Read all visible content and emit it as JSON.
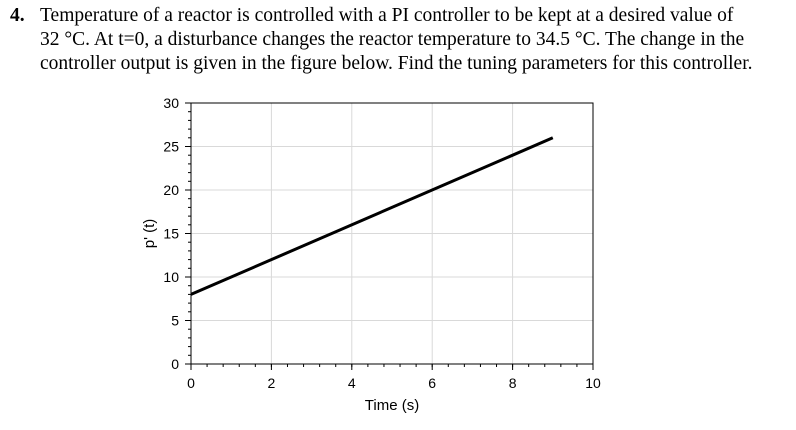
{
  "problem": {
    "number": "4.",
    "lines": [
      "Temperature of a reactor is controlled with a PI controller to be kept at a desired value of",
      "32 °C. At t=0, a disturbance changes the reactor temperature to 34.5 °C. The change in the",
      "controller output is given in the figure below. Find the tuning parameters for this controller."
    ]
  },
  "chart_data": {
    "type": "line",
    "xlabel": "Time (s)",
    "ylabel": "p' (t)",
    "xlim": [
      0,
      10
    ],
    "ylim": [
      0,
      30
    ],
    "x_ticks": [
      0,
      2,
      4,
      6,
      8,
      10
    ],
    "y_ticks": [
      0,
      5,
      10,
      15,
      20,
      25,
      30
    ],
    "grid": true,
    "series": [
      {
        "x": [
          0,
          9
        ],
        "y": [
          8,
          26
        ]
      }
    ]
  }
}
